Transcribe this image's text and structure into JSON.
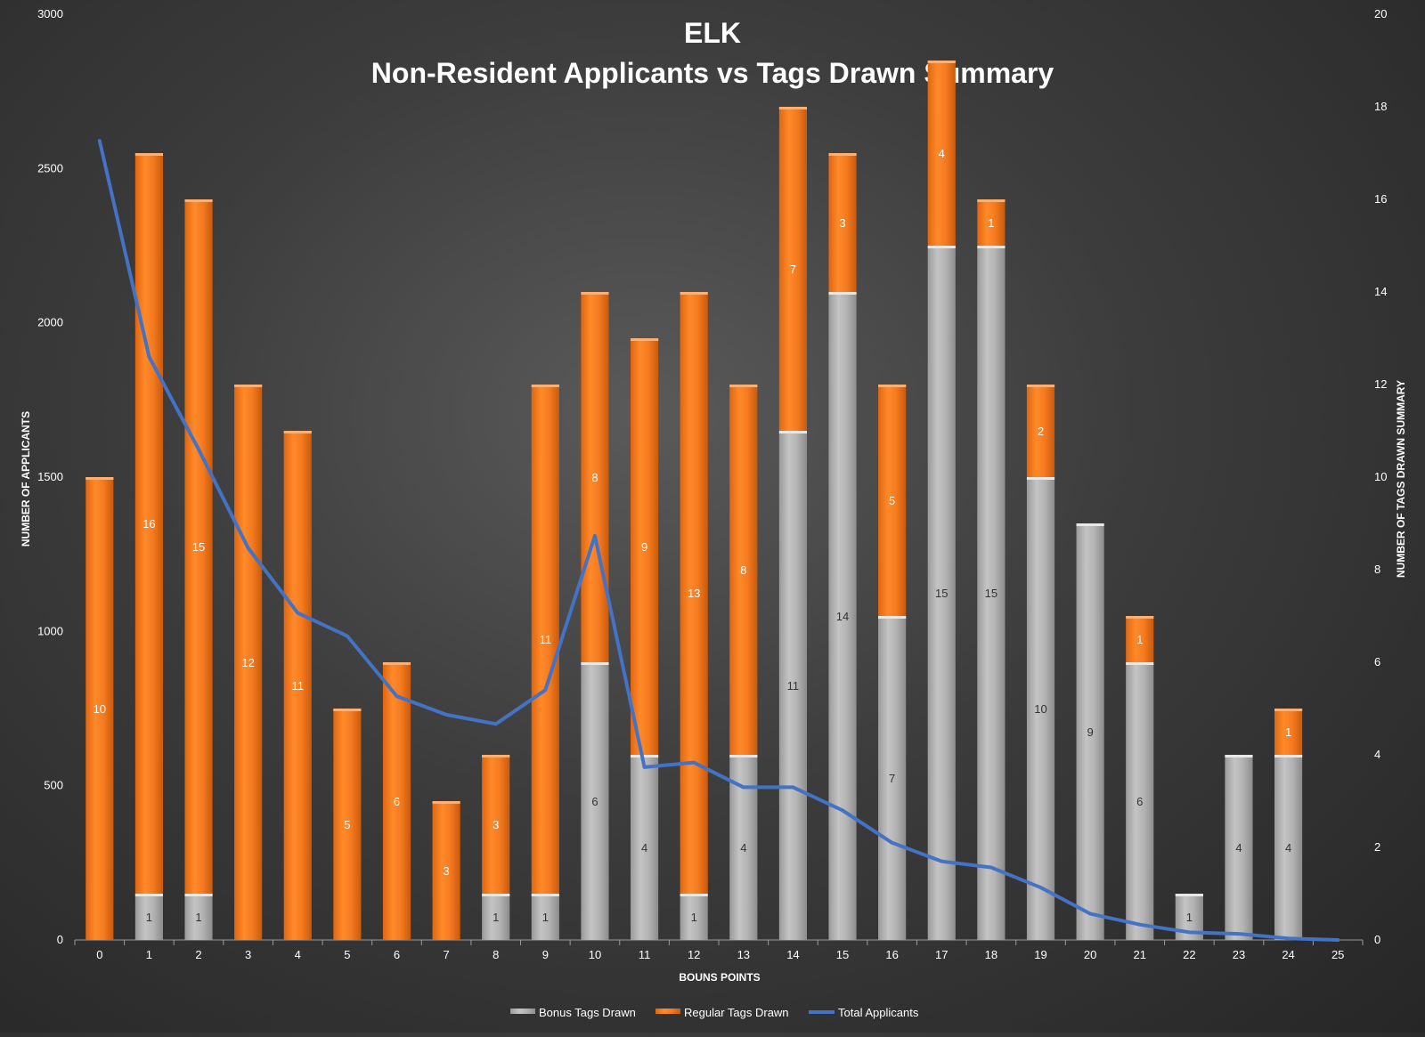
{
  "chart_data": {
    "type": "bar",
    "title": "ELK",
    "subtitle": "Non-Resident Applicants vs Tags Drawn Summary",
    "xlabel": "BOUNS POINTS",
    "ylabel_left": "NUMBER OF APPLICANTS",
    "ylabel_right": "NUMBER OF TAGS DRAWN SUMMARY",
    "categories": [
      "0",
      "1",
      "2",
      "3",
      "4",
      "5",
      "6",
      "7",
      "8",
      "9",
      "10",
      "11",
      "12",
      "13",
      "14",
      "15",
      "16",
      "17",
      "18",
      "19",
      "20",
      "21",
      "22",
      "23",
      "24",
      "25"
    ],
    "left_axis": {
      "ylim": [
        0,
        3000
      ],
      "ticks": [
        0,
        500,
        1000,
        1500,
        2000,
        2500,
        3000
      ]
    },
    "right_axis": {
      "ylim": [
        0,
        20
      ],
      "ticks": [
        0,
        2,
        4,
        6,
        8,
        10,
        12,
        14,
        16,
        18,
        20
      ]
    },
    "series": [
      {
        "name": "Bonus Tags Drawn",
        "kind": "stacked-bar",
        "axis": "right",
        "color": "#b3b3b3",
        "values": [
          0,
          1,
          1,
          0,
          0,
          0,
          0,
          0,
          1,
          1,
          6,
          4,
          1,
          4,
          11,
          14,
          7,
          15,
          15,
          10,
          9,
          6,
          1,
          4,
          4,
          0
        ]
      },
      {
        "name": "Regular Tags Drawn",
        "kind": "stacked-bar",
        "axis": "right",
        "color": "#f47a1f",
        "values": [
          10,
          16,
          15,
          12,
          11,
          5,
          6,
          3,
          3,
          11,
          8,
          9,
          13,
          8,
          7,
          3,
          5,
          4,
          1,
          2,
          0,
          1,
          0,
          0,
          1,
          0
        ]
      },
      {
        "name": "Total Applicants",
        "kind": "line",
        "axis": "left",
        "color": "#4472c4",
        "values": [
          2590,
          1890,
          1590,
          1270,
          1060,
          985,
          790,
          730,
          700,
          810,
          1310,
          560,
          575,
          495,
          495,
          420,
          315,
          255,
          235,
          170,
          85,
          50,
          25,
          20,
          5,
          0
        ]
      }
    ],
    "legend_position": "bottom"
  },
  "colors": {
    "bonus": "#b3b3b3",
    "regular": "#f47a1f",
    "line": "#4472c4"
  }
}
